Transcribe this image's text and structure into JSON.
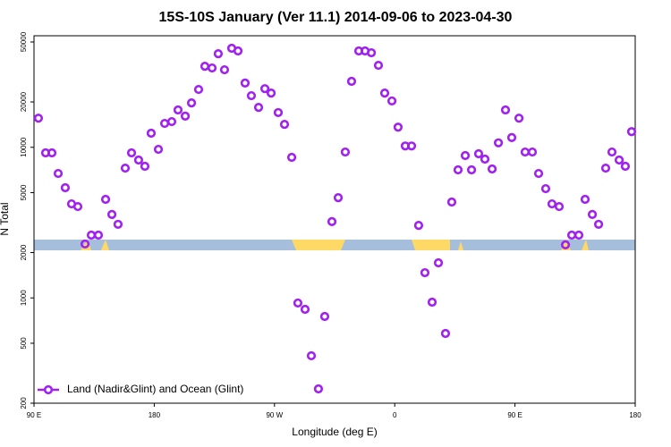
{
  "chart_data": {
    "type": "scatter",
    "title": "15S-10S January (Ver 11.1)   2014-09-06 to 2023-04-30",
    "x_label": "Longitude (deg E)",
    "y_label": "N Total",
    "xlim": [
      90,
      540
    ],
    "xticks": [
      {
        "value": 90,
        "label": "90 E"
      },
      180,
      {
        "value": 270,
        "label": "90 W"
      },
      {
        "value": 360,
        "label": "0"
      },
      {
        "value": 450,
        "label": "90 E"
      },
      {
        "value": 540,
        "label": "180"
      }
    ],
    "ylim": [
      200,
      55000
    ],
    "yticks": [
      200,
      500,
      1000,
      2000,
      5000,
      10000,
      20000,
      50000
    ],
    "log_y": true,
    "legend_position": "lower left",
    "series": [
      {
        "name": "Land (Nadir&Glint) and Ocean (Glint)",
        "color": "#a020f0",
        "x": [
          93.3,
          98.7,
          103.4,
          108.1,
          113.4,
          118.1,
          122.8,
          128.2,
          132.9,
          138.2,
          143.6,
          148.3,
          152.9,
          158.3,
          163.0,
          168.3,
          173.0,
          177.7,
          183.1,
          187.8,
          193.1,
          197.8,
          203.2,
          207.9,
          213.2,
          217.9,
          223.3,
          227.9,
          232.6,
          238.0,
          242.7,
          248.0,
          252.7,
          258.1,
          262.8,
          267.5,
          272.8,
          277.5,
          282.9,
          287.5,
          292.9,
          297.6,
          302.9,
          307.6,
          313.0,
          317.7,
          323.0,
          327.7,
          333.1,
          337.8,
          342.5,
          347.8,
          352.5,
          357.9,
          362.5,
          367.9,
          372.6,
          377.9,
          382.6,
          388.0,
          392.7,
          398.0,
          402.7,
          407.4,
          412.8,
          417.5,
          422.8,
          427.5,
          432.9,
          437.6,
          442.9,
          447.6,
          453.0,
          457.6,
          463.0,
          467.7,
          473.0,
          477.7,
          483.1,
          487.8,
          492.5,
          497.8,
          502.5,
          507.9,
          512.6,
          517.9,
          522.6,
          528.0,
          532.6,
          537.3
        ],
        "values": [
          15600,
          9180,
          9180,
          6700,
          5390,
          4210,
          4040,
          2280,
          2610,
          2610,
          4510,
          3580,
          3080,
          7270,
          9180,
          8230,
          7480,
          12400,
          9690,
          14400,
          14800,
          17700,
          16100,
          19700,
          24200,
          34500,
          33600,
          41800,
          32700,
          45400,
          43600,
          26700,
          22000,
          18400,
          24500,
          22900,
          17000,
          14200,
          8570,
          925,
          840,
          413,
          249,
          753,
          3210,
          4630,
          9300,
          27400,
          43600,
          43600,
          42400,
          35000,
          22900,
          20300,
          13600,
          10200,
          10200,
          3030,
          1470,
          937,
          1710,
          581,
          4330,
          7080,
          8810,
          7080,
          9060,
          8340,
          7180,
          10700,
          17700,
          11600,
          15600,
          9300,
          9300,
          6700,
          5310,
          4210,
          4040,
          2250,
          2610,
          2610,
          4510,
          3580,
          3080,
          7270,
          9300,
          8230,
          7480,
          12700
        ]
      }
    ]
  }
}
